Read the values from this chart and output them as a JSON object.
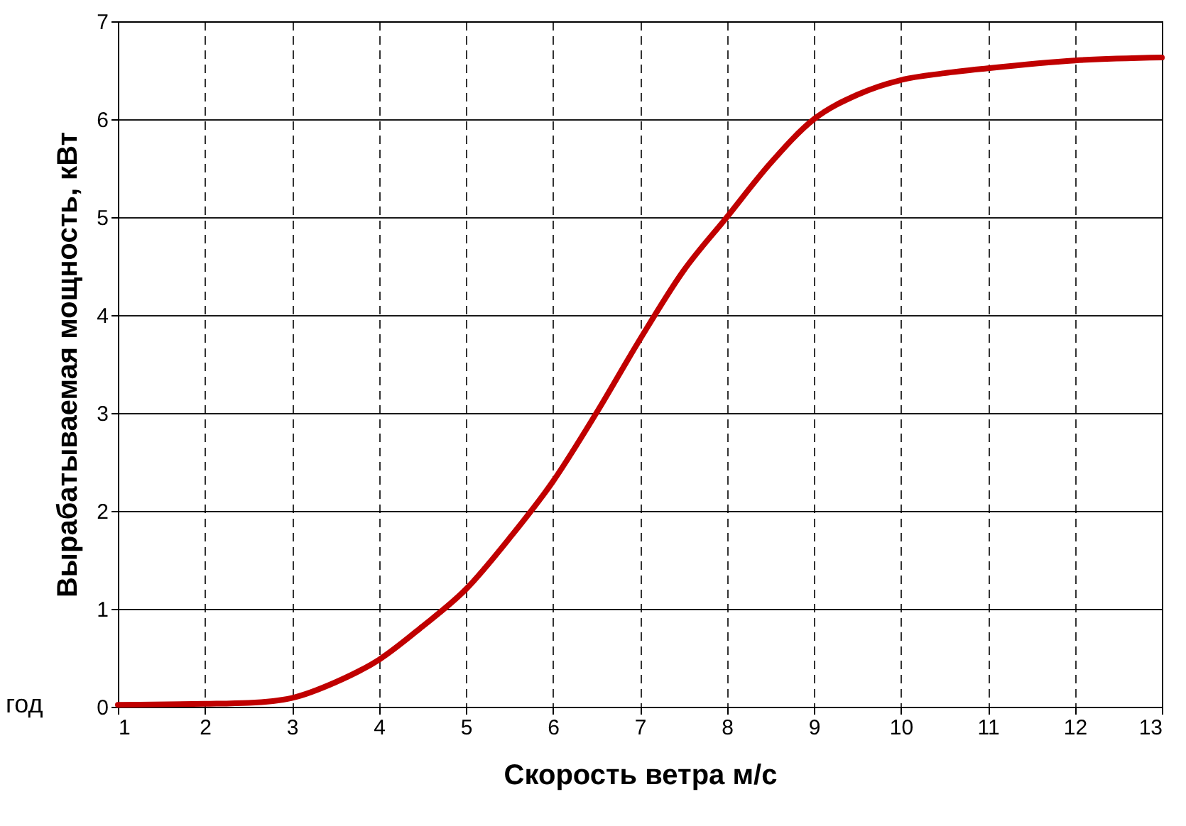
{
  "chart_data": {
    "type": "line",
    "xlabel": "Скорость ветра м/с",
    "ylabel": "Вырабатываемая мощность, кВт",
    "annotations": [
      "год"
    ],
    "x": [
      1,
      2,
      2.5,
      3,
      3.5,
      4,
      4.5,
      5,
      5.5,
      6,
      6.5,
      7,
      7.5,
      8,
      8.5,
      9,
      9.5,
      10,
      10.5,
      11,
      12,
      13
    ],
    "series": [
      {
        "color": "#c00000",
        "values": [
          0.02,
          0.03,
          0.04,
          0.09,
          0.25,
          0.48,
          0.82,
          1.2,
          1.72,
          2.3,
          3.0,
          3.75,
          4.45,
          5.0,
          5.55,
          6.0,
          6.25,
          6.4,
          6.47,
          6.52,
          6.6,
          6.63
        ]
      }
    ],
    "xlim": [
      1,
      13
    ],
    "xticks": [
      1,
      2,
      3,
      4,
      5,
      6,
      7,
      8,
      9,
      10,
      11,
      12,
      13
    ],
    "ylim": [
      0,
      7
    ],
    "yticks": [
      0,
      1,
      2,
      3,
      4,
      5,
      6,
      7
    ],
    "grid": true,
    "marker": "none",
    "line_style": "solid"
  }
}
